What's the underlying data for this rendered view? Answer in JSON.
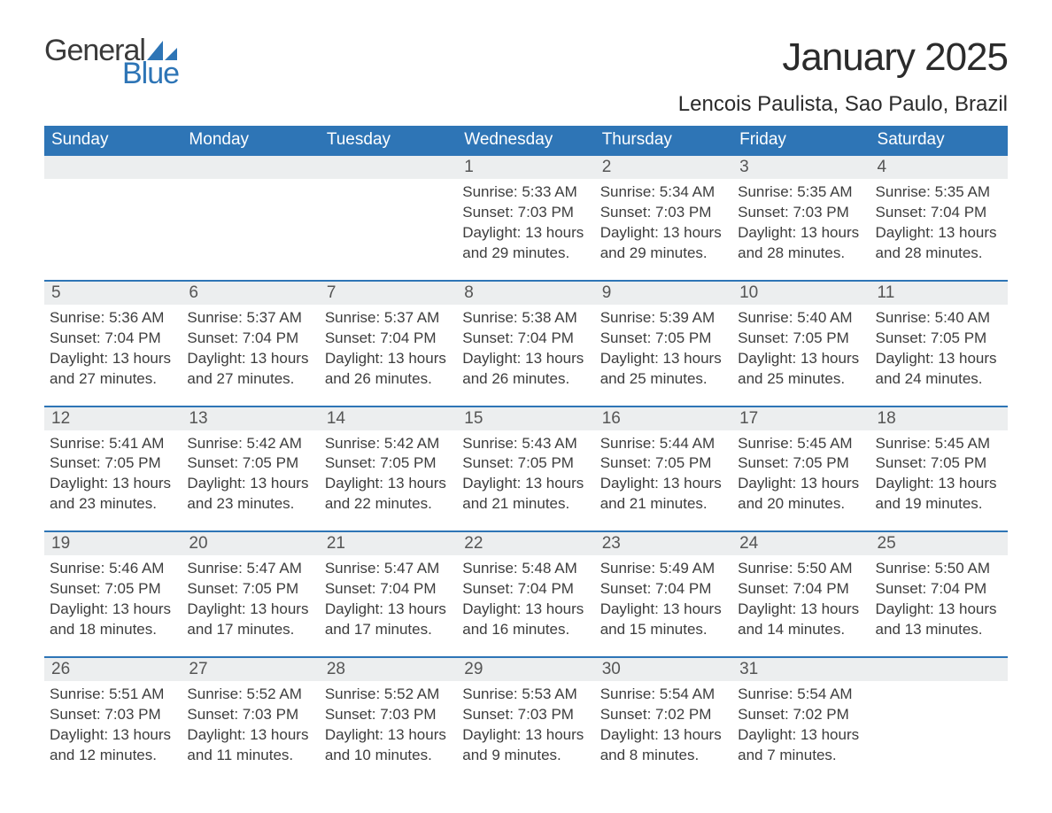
{
  "logo": {
    "word1": "General",
    "word2": "Blue",
    "sail_color": "#2e75b6"
  },
  "title": "January 2025",
  "location": "Lencois Paulista, Sao Paulo, Brazil",
  "colors": {
    "header_bg": "#2e75b6",
    "header_text": "#ffffff",
    "daynum_bg": "#eceeef",
    "row_border": "#2e75b6",
    "body_text": "#3d3d3d",
    "page_bg": "#ffffff"
  },
  "typography": {
    "title_fontsize": 44,
    "location_fontsize": 24,
    "weekday_fontsize": 19,
    "daynum_fontsize": 19,
    "detail_fontsize": 17
  },
  "weekdays": [
    "Sunday",
    "Monday",
    "Tuesday",
    "Wednesday",
    "Thursday",
    "Friday",
    "Saturday"
  ],
  "weeks": [
    [
      null,
      null,
      null,
      {
        "day": "1",
        "sunrise": "5:33 AM",
        "sunset": "7:03 PM",
        "daylight_h": "13",
        "daylight_m": "29"
      },
      {
        "day": "2",
        "sunrise": "5:34 AM",
        "sunset": "7:03 PM",
        "daylight_h": "13",
        "daylight_m": "29"
      },
      {
        "day": "3",
        "sunrise": "5:35 AM",
        "sunset": "7:03 PM",
        "daylight_h": "13",
        "daylight_m": "28"
      },
      {
        "day": "4",
        "sunrise": "5:35 AM",
        "sunset": "7:04 PM",
        "daylight_h": "13",
        "daylight_m": "28"
      }
    ],
    [
      {
        "day": "5",
        "sunrise": "5:36 AM",
        "sunset": "7:04 PM",
        "daylight_h": "13",
        "daylight_m": "27"
      },
      {
        "day": "6",
        "sunrise": "5:37 AM",
        "sunset": "7:04 PM",
        "daylight_h": "13",
        "daylight_m": "27"
      },
      {
        "day": "7",
        "sunrise": "5:37 AM",
        "sunset": "7:04 PM",
        "daylight_h": "13",
        "daylight_m": "26"
      },
      {
        "day": "8",
        "sunrise": "5:38 AM",
        "sunset": "7:04 PM",
        "daylight_h": "13",
        "daylight_m": "26"
      },
      {
        "day": "9",
        "sunrise": "5:39 AM",
        "sunset": "7:05 PM",
        "daylight_h": "13",
        "daylight_m": "25"
      },
      {
        "day": "10",
        "sunrise": "5:40 AM",
        "sunset": "7:05 PM",
        "daylight_h": "13",
        "daylight_m": "25"
      },
      {
        "day": "11",
        "sunrise": "5:40 AM",
        "sunset": "7:05 PM",
        "daylight_h": "13",
        "daylight_m": "24"
      }
    ],
    [
      {
        "day": "12",
        "sunrise": "5:41 AM",
        "sunset": "7:05 PM",
        "daylight_h": "13",
        "daylight_m": "23"
      },
      {
        "day": "13",
        "sunrise": "5:42 AM",
        "sunset": "7:05 PM",
        "daylight_h": "13",
        "daylight_m": "23"
      },
      {
        "day": "14",
        "sunrise": "5:42 AM",
        "sunset": "7:05 PM",
        "daylight_h": "13",
        "daylight_m": "22"
      },
      {
        "day": "15",
        "sunrise": "5:43 AM",
        "sunset": "7:05 PM",
        "daylight_h": "13",
        "daylight_m": "21"
      },
      {
        "day": "16",
        "sunrise": "5:44 AM",
        "sunset": "7:05 PM",
        "daylight_h": "13",
        "daylight_m": "21"
      },
      {
        "day": "17",
        "sunrise": "5:45 AM",
        "sunset": "7:05 PM",
        "daylight_h": "13",
        "daylight_m": "20"
      },
      {
        "day": "18",
        "sunrise": "5:45 AM",
        "sunset": "7:05 PM",
        "daylight_h": "13",
        "daylight_m": "19"
      }
    ],
    [
      {
        "day": "19",
        "sunrise": "5:46 AM",
        "sunset": "7:05 PM",
        "daylight_h": "13",
        "daylight_m": "18"
      },
      {
        "day": "20",
        "sunrise": "5:47 AM",
        "sunset": "7:05 PM",
        "daylight_h": "13",
        "daylight_m": "17"
      },
      {
        "day": "21",
        "sunrise": "5:47 AM",
        "sunset": "7:04 PM",
        "daylight_h": "13",
        "daylight_m": "17"
      },
      {
        "day": "22",
        "sunrise": "5:48 AM",
        "sunset": "7:04 PM",
        "daylight_h": "13",
        "daylight_m": "16"
      },
      {
        "day": "23",
        "sunrise": "5:49 AM",
        "sunset": "7:04 PM",
        "daylight_h": "13",
        "daylight_m": "15"
      },
      {
        "day": "24",
        "sunrise": "5:50 AM",
        "sunset": "7:04 PM",
        "daylight_h": "13",
        "daylight_m": "14"
      },
      {
        "day": "25",
        "sunrise": "5:50 AM",
        "sunset": "7:04 PM",
        "daylight_h": "13",
        "daylight_m": "13"
      }
    ],
    [
      {
        "day": "26",
        "sunrise": "5:51 AM",
        "sunset": "7:03 PM",
        "daylight_h": "13",
        "daylight_m": "12"
      },
      {
        "day": "27",
        "sunrise": "5:52 AM",
        "sunset": "7:03 PM",
        "daylight_h": "13",
        "daylight_m": "11"
      },
      {
        "day": "28",
        "sunrise": "5:52 AM",
        "sunset": "7:03 PM",
        "daylight_h": "13",
        "daylight_m": "10"
      },
      {
        "day": "29",
        "sunrise": "5:53 AM",
        "sunset": "7:03 PM",
        "daylight_h": "13",
        "daylight_m": "9"
      },
      {
        "day": "30",
        "sunrise": "5:54 AM",
        "sunset": "7:02 PM",
        "daylight_h": "13",
        "daylight_m": "8"
      },
      {
        "day": "31",
        "sunrise": "5:54 AM",
        "sunset": "7:02 PM",
        "daylight_h": "13",
        "daylight_m": "7"
      },
      null
    ]
  ],
  "labels": {
    "sunrise": "Sunrise: ",
    "sunset": "Sunset: ",
    "daylight_prefix": "Daylight: ",
    "hours_word": " hours",
    "and_word": "and ",
    "minutes_suffix": " minutes."
  }
}
